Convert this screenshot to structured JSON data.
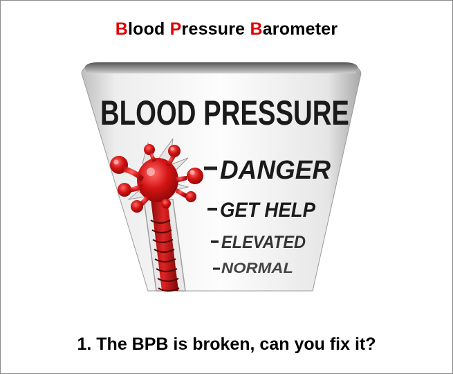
{
  "title": {
    "parts": [
      {
        "cap": "B",
        "rest": "lood "
      },
      {
        "cap": "P",
        "rest": "ressure "
      },
      {
        "cap": "B",
        "rest": "arometer"
      }
    ],
    "accent_color": "#e00000"
  },
  "gauge": {
    "heading": "BLOOD PRESSURE",
    "levels": [
      {
        "label": "DANGER"
      },
      {
        "label": "GET HELP"
      },
      {
        "label": "ELEVATED"
      },
      {
        "label": "NORMAL"
      }
    ],
    "level_reading": "DANGER",
    "mercury_color": "#d41414"
  },
  "question": "1. The BPB is broken, can you fix it?"
}
